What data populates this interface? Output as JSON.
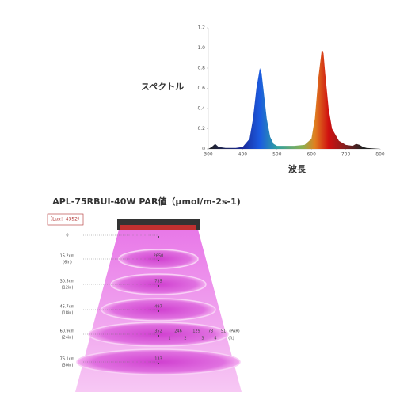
{
  "chart_data": {
    "type": "area",
    "ylabel": "スペクトル",
    "xlabel": "波長",
    "xlim": [
      300,
      800
    ],
    "xticks": [
      300,
      400,
      500,
      600,
      700,
      800
    ],
    "ylim": [
      0,
      1.2
    ],
    "yticks": [
      0,
      0.2,
      0.4,
      0.6,
      0.8,
      {
        "value": 1,
        "label": "1.0"
      },
      1.2
    ],
    "x": [
      300,
      310,
      320,
      330,
      350,
      380,
      400,
      420,
      430,
      440,
      450,
      455,
      460,
      470,
      480,
      490,
      500,
      520,
      550,
      580,
      600,
      610,
      620,
      630,
      635,
      640,
      650,
      660,
      680,
      700,
      720,
      730,
      740,
      750,
      760,
      800
    ],
    "values": [
      0,
      0.02,
      0.05,
      0.02,
      0.01,
      0.01,
      0.02,
      0.1,
      0.3,
      0.6,
      0.8,
      0.75,
      0.6,
      0.3,
      0.12,
      0.05,
      0.03,
      0.03,
      0.03,
      0.04,
      0.1,
      0.3,
      0.7,
      0.98,
      0.95,
      0.75,
      0.4,
      0.2,
      0.08,
      0.04,
      0.03,
      0.05,
      0.04,
      0.02,
      0.01,
      0
    ]
  },
  "par": {
    "title": "APL-75RBUI-40W PAR値（μmol/m-2s-1)",
    "lux": "（Lux：4352）",
    "levels": [
      {
        "cm": "0"
      },
      {
        "cm": "15.2cm",
        "in": "(6in)",
        "value": 2650
      },
      {
        "cm": "30.5cm",
        "in": "(12in)",
        "value": 735
      },
      {
        "cm": "45.7cm",
        "in": "(18in)",
        "value": 497
      },
      {
        "cm": "60.9cm",
        "in": "(24in)",
        "value": 352
      },
      {
        "cm": "76.1cm",
        "in": "(30in)",
        "value": 133
      }
    ],
    "spread": {
      "values": [
        246,
        129,
        73,
        51
      ],
      "unit": "(PAR)",
      "feet": [
        "1",
        "2",
        "3",
        "4"
      ],
      "feet_unit": "(ft)"
    }
  }
}
